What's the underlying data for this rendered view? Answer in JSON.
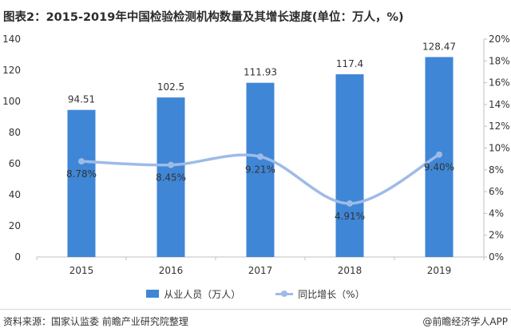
{
  "colors": {
    "bar": "#3f86d6",
    "line": "#9dbbe8",
    "axis": "#bfbfbf",
    "tick_text": "#333333"
  },
  "chart_data": {
    "type": "bar",
    "title": "图表2：2015-2019年中国检验检测机构数量及其增长速度(单位：万人，%)",
    "categories": [
      "2015",
      "2016",
      "2017",
      "2018",
      "2019"
    ],
    "series": [
      {
        "name": "从业人员（万人）",
        "type": "bar",
        "axis": "left",
        "values": [
          94.51,
          102.5,
          111.93,
          117.4,
          128.47
        ],
        "labels": [
          "94.51",
          "102.5",
          "111.93",
          "117.4",
          "128.47"
        ]
      },
      {
        "name": "同比增长（%）",
        "type": "line",
        "axis": "right",
        "values": [
          8.78,
          8.45,
          9.21,
          4.91,
          9.4
        ],
        "labels": [
          "8.78%",
          "8.45%",
          "9.21%",
          "4.91%",
          "9.40%"
        ]
      }
    ],
    "y_left": {
      "min": 0,
      "max": 140,
      "step": 20,
      "ticks": [
        "0",
        "20",
        "40",
        "60",
        "80",
        "100",
        "120",
        "140"
      ]
    },
    "y_right": {
      "min": 0,
      "max": 20,
      "step": 2,
      "ticks": [
        "0%",
        "2%",
        "4%",
        "6%",
        "8%",
        "10%",
        "12%",
        "14%",
        "16%",
        "18%",
        "20%"
      ]
    },
    "legend": "bottom-center",
    "grid": false
  },
  "footer": {
    "source": "资料来源：国家认监委 前瞻产业研究院整理",
    "credit": "@前瞻经济学人APP"
  }
}
